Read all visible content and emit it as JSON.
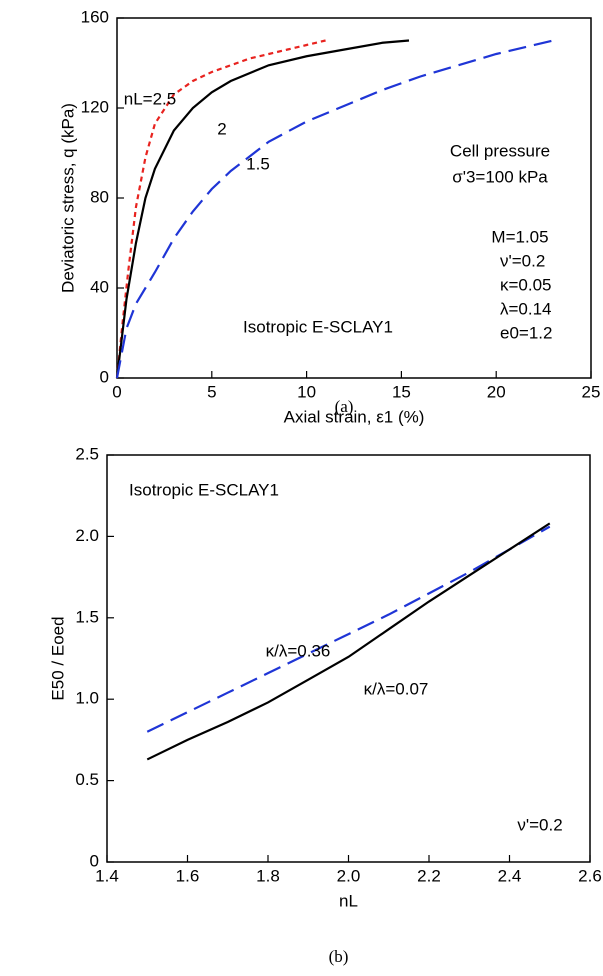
{
  "chart_data": [
    {
      "type": "line",
      "caption": "(a)",
      "xlabel": "Axial strain, ε1 (%)",
      "ylabel": "Deviatoric stress, q (kPa)",
      "xlim": [
        0,
        25
      ],
      "xticks": [
        0,
        5,
        10,
        15,
        20,
        25
      ],
      "ylim": [
        0,
        160
      ],
      "yticks": [
        0,
        40,
        80,
        120,
        160
      ],
      "annotations": [
        "Cell pressure",
        "σ'3=100 kPa",
        "M=1.05",
        "ν'=0.2",
        "κ=0.05",
        "λ=0.14",
        "e0=1.2",
        "Isotropic E-SCLAY1"
      ],
      "series": [
        {
          "name": "nL=2.5",
          "color": "#e8231f",
          "linestyle": "dotted",
          "x": [
            0,
            0.3,
            0.6,
            1,
            1.5,
            2,
            3,
            4,
            5,
            6,
            7,
            8,
            9,
            10,
            11
          ],
          "values": [
            0,
            25,
            48,
            76,
            98,
            113,
            126,
            132,
            136,
            139,
            142,
            144,
            146,
            148,
            150
          ]
        },
        {
          "name": "2",
          "color": "#000000",
          "linestyle": "solid",
          "x": [
            0,
            0.5,
            1,
            1.5,
            2,
            3,
            4,
            5,
            6,
            8,
            10,
            12,
            14,
            15.4
          ],
          "values": [
            0,
            35,
            60,
            80,
            93,
            110,
            120,
            127,
            132,
            139,
            143,
            146,
            149,
            150
          ]
        },
        {
          "name": "1.5",
          "color": "#1f35d6",
          "linestyle": "dashed",
          "x": [
            0,
            0.5,
            1,
            1.5,
            2,
            3,
            4,
            5,
            6,
            8,
            10,
            12,
            14,
            16,
            18,
            20,
            23
          ],
          "values": [
            0,
            22,
            33,
            40,
            47,
            62,
            74,
            84,
            92,
            105,
            114,
            121,
            128,
            134,
            139,
            144,
            150
          ]
        }
      ]
    },
    {
      "type": "line",
      "caption": "(b)",
      "xlabel": "nL",
      "ylabel": "E50 / Eoed",
      "xlim": [
        1.4,
        2.6
      ],
      "xticks": [
        1.4,
        1.6,
        1.8,
        {
          "value": 2,
          "label": "2.0"
        },
        2.2,
        2.4,
        2.6
      ],
      "ylim": [
        0,
        2.5
      ],
      "yticks": [
        0,
        0.5,
        {
          "value": 1,
          "label": "1.0"
        },
        1.5,
        {
          "value": 2,
          "label": "2.0"
        },
        2.5
      ],
      "annotations": [
        "Isotropic E-SCLAY1",
        "ν'=0.2"
      ],
      "series": [
        {
          "name": "κ/λ=0.36",
          "color": "#1f35d6",
          "linestyle": "dashed",
          "x": [
            1.5,
            1.6,
            1.7,
            1.8,
            1.9,
            2.0,
            2.1,
            2.2,
            2.3,
            2.4,
            2.5
          ],
          "values": [
            0.8,
            0.92,
            1.04,
            1.16,
            1.28,
            1.4,
            1.52,
            1.65,
            1.78,
            1.92,
            2.06
          ]
        },
        {
          "name": "κ/λ=0.07",
          "color": "#000000",
          "linestyle": "solid",
          "x": [
            1.5,
            1.6,
            1.7,
            1.8,
            1.9,
            2.0,
            2.1,
            2.2,
            2.3,
            2.4,
            2.5
          ],
          "values": [
            0.63,
            0.75,
            0.86,
            0.98,
            1.12,
            1.26,
            1.43,
            1.6,
            1.76,
            1.92,
            2.08
          ]
        }
      ]
    }
  ]
}
